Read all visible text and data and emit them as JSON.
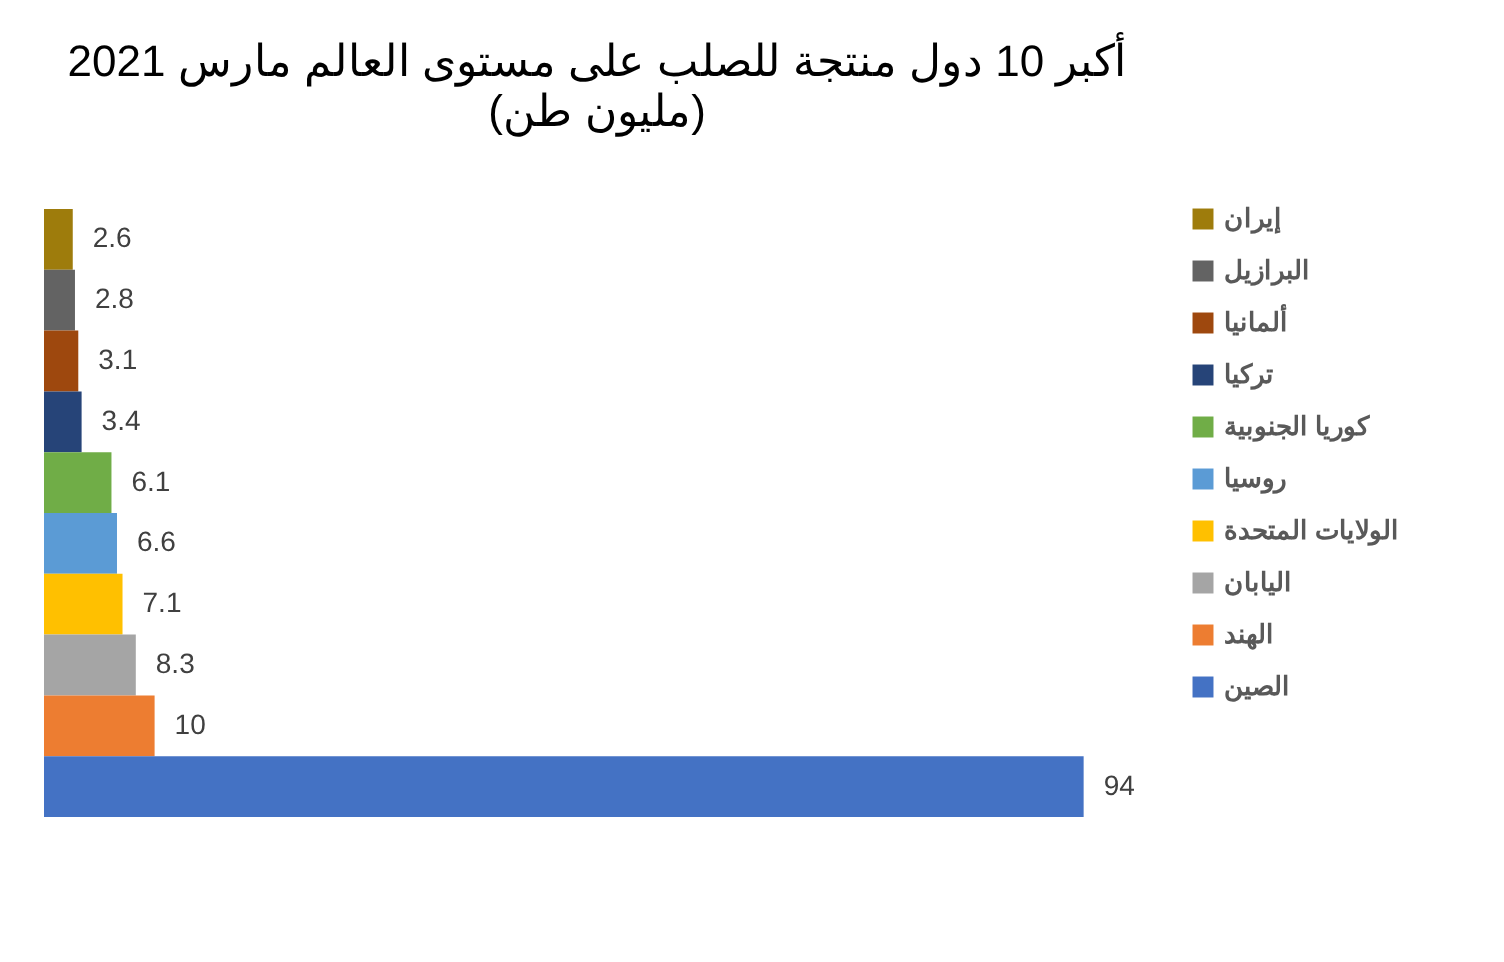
{
  "chart_data": {
    "type": "bar",
    "orientation": "horizontal",
    "title": "أكبر 10 دول منتجة للصلب على مستوى العالم مارس 2021",
    "subtitle": "(مليون طن)",
    "categories": [
      null
    ],
    "data_labels": true,
    "legend": "right",
    "grid": false,
    "tick_labels": false,
    "series": [
      {
        "name": "إيران",
        "color": "#9e7c0c",
        "values": [
          2.6
        ]
      },
      {
        "name": "البرازيل",
        "color": "#636363",
        "values": [
          2.8
        ]
      },
      {
        "name": "ألمانيا",
        "color": "#9e480e",
        "values": [
          3.1
        ]
      },
      {
        "name": "تركيا",
        "color": "#264478",
        "values": [
          3.4
        ]
      },
      {
        "name": "كوريا الجنوبية",
        "color": "#70ad47",
        "values": [
          6.1
        ]
      },
      {
        "name": "روسيا",
        "color": "#5b9bd5",
        "values": [
          6.6
        ]
      },
      {
        "name": "الولايات المتحدة",
        "color": "#ffc000",
        "values": [
          7.1
        ]
      },
      {
        "name": "اليابان",
        "color": "#a5a5a5",
        "values": [
          8.3
        ]
      },
      {
        "name": "الهند",
        "color": "#ed7d31",
        "values": [
          10
        ]
      },
      {
        "name": "الصين",
        "color": "#4472c4",
        "values": [
          94
        ]
      }
    ]
  }
}
